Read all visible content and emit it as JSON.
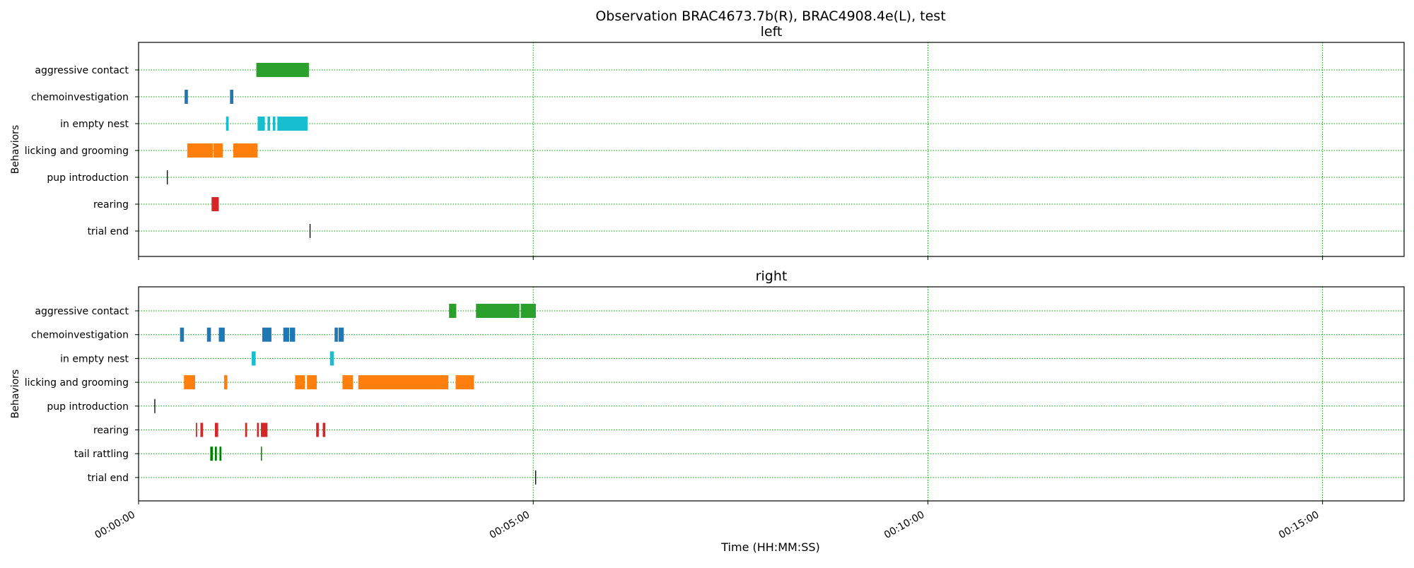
{
  "chart_data": {
    "type": "timeline",
    "title": "Observation BRAC4673.7b(R), BRAC4908.4e(L), test",
    "xlabel": "Time (HH:MM:SS)",
    "xlim_seconds": [
      0,
      962
    ],
    "x_ticks": [
      {
        "value": 0,
        "label": "00:00:00"
      },
      {
        "value": 300,
        "label": "00:05:00"
      },
      {
        "value": 600,
        "label": "00:10:00"
      },
      {
        "value": 900,
        "label": "00:15:00"
      }
    ],
    "grid": true,
    "panels": [
      {
        "title": "left",
        "ylabel": "Behaviors",
        "behaviors": [
          {
            "name": "aggressive contact",
            "color": "#2ca02c",
            "intervals": [
              [
                89.5,
                129.5
              ]
            ]
          },
          {
            "name": "chemoinvestigation",
            "color": "#1f77b4",
            "intervals": [
              [
                35,
                37.5
              ],
              [
                69.5,
                72
              ]
            ]
          },
          {
            "name": "in empty nest",
            "color": "#17becf",
            "intervals": [
              [
                66.5,
                68.5
              ],
              [
                90.5,
                96
              ],
              [
                98,
                100
              ],
              [
                102,
                104
              ],
              [
                105.5,
                128.5
              ]
            ]
          },
          {
            "name": "licking and grooming",
            "color": "#ff7f0e",
            "intervals": [
              [
                37,
                56.5
              ],
              [
                57,
                64
              ],
              [
                72,
                90.5
              ]
            ]
          },
          {
            "name": "pup introduction",
            "color": "#000000",
            "intervals": [
              [
                21.5,
                22.2
              ]
            ]
          },
          {
            "name": "rearing",
            "color": "#d62728",
            "intervals": [
              [
                55.5,
                61
              ]
            ]
          },
          {
            "name": "trial end",
            "color": "#000000",
            "intervals": [
              [
                130,
                130.7
              ]
            ]
          }
        ]
      },
      {
        "title": "right",
        "ylabel": "Behaviors",
        "behaviors": [
          {
            "name": "aggressive contact",
            "color": "#2ca02c",
            "intervals": [
              [
                236,
                241.5
              ],
              [
                256.5,
                289.5
              ],
              [
                290.5,
                302
              ]
            ]
          },
          {
            "name": "chemoinvestigation",
            "color": "#1f77b4",
            "intervals": [
              [
                31.5,
                34.5
              ],
              [
                52,
                55
              ],
              [
                61,
                65.5
              ],
              [
                94,
                101
              ],
              [
                110,
                114.5
              ],
              [
                115,
                119
              ],
              [
                149,
                151.5
              ],
              [
                152,
                156
              ]
            ]
          },
          {
            "name": "in empty nest",
            "color": "#17becf",
            "intervals": [
              [
                86,
                89
              ],
              [
                145.5,
                148.5
              ]
            ]
          },
          {
            "name": "licking and grooming",
            "color": "#ff7f0e",
            "intervals": [
              [
                34.5,
                43
              ],
              [
                65,
                67.5
              ],
              [
                119,
                126.5
              ],
              [
                128,
                135.5
              ],
              [
                155,
                163
              ],
              [
                167,
                235.5
              ],
              [
                241,
                255
              ]
            ]
          },
          {
            "name": "pup introduction",
            "color": "#000000",
            "intervals": [
              [
                12,
                12.7
              ]
            ]
          },
          {
            "name": "rearing",
            "color": "#d62728",
            "intervals": [
              [
                43.5,
                44.5
              ],
              [
                47,
                49
              ],
              [
                58,
                60.5
              ],
              [
                81,
                82.5
              ],
              [
                90,
                91.5
              ],
              [
                93,
                98
              ],
              [
                135,
                137
              ],
              [
                140,
                142
              ]
            ]
          },
          {
            "name": "tail rattling",
            "color": "#008000",
            "intervals": [
              [
                54.5,
                56.5
              ],
              [
                58,
                59.5
              ],
              [
                61.5,
                63
              ],
              [
                93,
                93.8
              ]
            ]
          },
          {
            "name": "trial end",
            "color": "#000000",
            "intervals": [
              [
                301.5,
                302.2
              ]
            ]
          }
        ]
      }
    ]
  }
}
